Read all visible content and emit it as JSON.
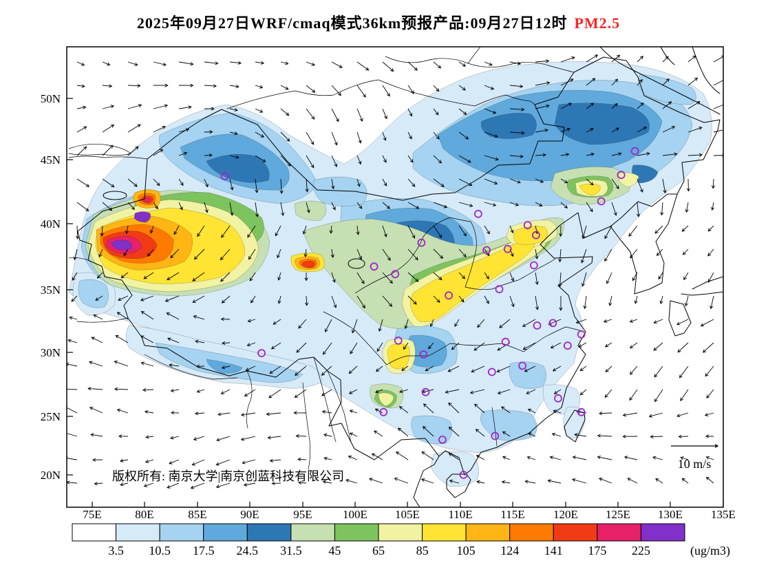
{
  "title": {
    "text": "2025年09月27日WRF/cmaq模式36km预报产品:09月27日12时",
    "pollutant": "PM2.5"
  },
  "map": {
    "lat_tick_labels": [
      "50N",
      "45N",
      "40N",
      "35N",
      "30N",
      "25N",
      "20N"
    ],
    "lon_tick_labels": [
      "75E",
      "80E",
      "85E",
      "90E",
      "95E",
      "100E",
      "105E",
      "110E",
      "115E",
      "120E",
      "125E",
      "130E",
      "135E"
    ],
    "copyright": "版权所有: 南京大学|南京创蓝科技有限公司",
    "wind_legend_label": "10 m/s",
    "city_marker_color": "#A226C9",
    "city_markers_lonlat": [
      [
        87.6,
        43.8
      ],
      [
        126.6,
        45.8
      ],
      [
        125.3,
        43.9
      ],
      [
        123.4,
        41.8
      ],
      [
        111.7,
        40.8
      ],
      [
        116.4,
        39.9
      ],
      [
        117.2,
        39.1
      ],
      [
        114.5,
        38.0
      ],
      [
        112.5,
        37.9
      ],
      [
        106.3,
        38.5
      ],
      [
        103.8,
        36.0
      ],
      [
        101.8,
        36.6
      ],
      [
        108.9,
        34.3
      ],
      [
        113.7,
        34.8
      ],
      [
        117.0,
        36.7
      ],
      [
        121.5,
        31.2
      ],
      [
        118.8,
        32.1
      ],
      [
        117.3,
        31.9
      ],
      [
        114.3,
        30.6
      ],
      [
        113.0,
        28.2
      ],
      [
        115.9,
        28.7
      ],
      [
        120.2,
        30.3
      ],
      [
        104.1,
        30.7
      ],
      [
        106.5,
        29.6
      ],
      [
        106.7,
        26.6
      ],
      [
        102.7,
        25.0
      ],
      [
        108.3,
        22.8
      ],
      [
        113.3,
        23.1
      ],
      [
        110.3,
        20.0
      ],
      [
        119.3,
        26.1
      ],
      [
        91.1,
        29.7
      ],
      [
        121.5,
        25.0
      ]
    ]
  },
  "colorbar": {
    "unit_label": "(ug/m3)",
    "tick_labels": [
      "3.5",
      "10.5",
      "17.5",
      "24.5",
      "31.5",
      "45",
      "65",
      "85",
      "105",
      "124",
      "141",
      "175",
      "225"
    ],
    "colors": [
      "#FFFFFF",
      "#D6EAF8",
      "#A5D3F1",
      "#5FA9DC",
      "#2E77B5",
      "#C6DFB3",
      "#7DC35E",
      "#F1F2A2",
      "#FFE433",
      "#FFB514",
      "#FF7A00",
      "#F03B14",
      "#E62168",
      "#8130C9"
    ]
  }
}
